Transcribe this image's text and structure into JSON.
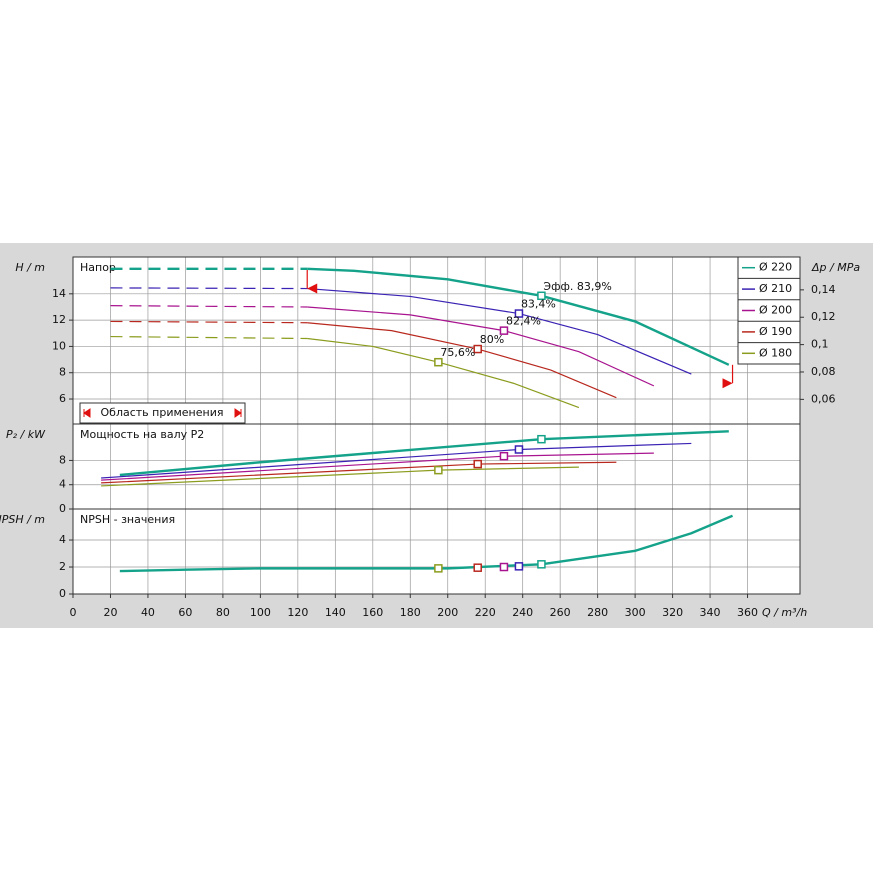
{
  "chart_data": [
    {
      "type": "line",
      "title": "Напор",
      "ylabel": "H / m",
      "y2label": "Δp / MPa",
      "xlim": [
        0,
        388
      ],
      "ylim": [
        4.1,
        16.8
      ],
      "yticks": [
        6,
        8,
        10,
        12,
        14
      ],
      "y2lim": [
        0.042,
        0.164
      ],
      "y2ticks": [
        {
          "value": 0.06,
          "label": "0,06"
        },
        {
          "value": 0.08,
          "label": "0,08"
        },
        {
          "value": 0.1,
          "label": "0,1"
        },
        {
          "value": 0.12,
          "label": "0,12"
        },
        {
          "value": 0.14,
          "label": "0,14"
        }
      ],
      "grid": true,
      "legend": "upper right",
      "application_range": [
        125,
        352
      ],
      "application_label": "Область применения",
      "series": [
        {
          "name": "Ø 220",
          "color": "#14a38a",
          "x": [
            20,
            125,
            150,
            200,
            250,
            300,
            350
          ],
          "values": [
            15.9,
            15.9,
            15.75,
            15.1,
            13.85,
            11.9,
            8.6
          ],
          "point": {
            "x": 250,
            "y": 13.85,
            "label": "Эфф.  83,9%"
          }
        },
        {
          "name": "Ø 210",
          "color": "#3a22b4",
          "x": [
            20,
            125,
            180,
            238,
            280,
            330
          ],
          "values": [
            14.45,
            14.4,
            13.8,
            12.5,
            10.9,
            7.9
          ],
          "point": {
            "x": 238,
            "y": 12.5,
            "label": "83,4%"
          }
        },
        {
          "name": "Ø 200",
          "color": "#a8148f",
          "x": [
            20,
            125,
            180,
            230,
            270,
            310
          ],
          "values": [
            13.1,
            13.0,
            12.4,
            11.2,
            9.6,
            7.0
          ],
          "point": {
            "x": 230,
            "y": 11.2,
            "label": "82,4%"
          }
        },
        {
          "name": "Ø 190",
          "color": "#b8281e",
          "x": [
            20,
            125,
            170,
            216,
            255,
            290
          ],
          "values": [
            11.9,
            11.8,
            11.2,
            9.8,
            8.2,
            6.1
          ],
          "point": {
            "x": 216,
            "y": 9.8,
            "label": "80%"
          }
        },
        {
          "name": "Ø 180",
          "color": "#8c9c1e",
          "x": [
            20,
            125,
            160,
            195,
            235,
            270
          ],
          "values": [
            10.75,
            10.6,
            10.0,
            8.8,
            7.2,
            5.35
          ],
          "point": {
            "x": 195,
            "y": 8.8,
            "label": "75,6%"
          }
        }
      ]
    },
    {
      "type": "line",
      "title": "Мощность на валу P2",
      "ylabel": "P₂ / kW",
      "xlim": [
        0,
        388
      ],
      "ylim": [
        0,
        14
      ],
      "yticks": [
        0,
        4,
        8
      ],
      "grid": true,
      "series": [
        {
          "color": "#14a38a",
          "x": [
            25,
            100,
            250,
            350
          ],
          "values": [
            5.6,
            7.7,
            11.5,
            12.8
          ],
          "point": {
            "x": 250,
            "y": 11.5
          }
        },
        {
          "color": "#3a22b4",
          "x": [
            15,
            238,
            330
          ],
          "values": [
            5.1,
            9.8,
            10.8
          ],
          "point": {
            "x": 238,
            "y": 9.8
          }
        },
        {
          "color": "#a8148f",
          "x": [
            15,
            230,
            310
          ],
          "values": [
            4.75,
            8.7,
            9.2
          ],
          "point": {
            "x": 230,
            "y": 8.7
          }
        },
        {
          "color": "#b8281e",
          "x": [
            15,
            216,
            290
          ],
          "values": [
            4.3,
            7.4,
            7.7
          ],
          "point": {
            "x": 216,
            "y": 7.4
          }
        },
        {
          "color": "#8c9c1e",
          "x": [
            15,
            195,
            270
          ],
          "values": [
            3.8,
            6.4,
            6.9
          ],
          "point": {
            "x": 195,
            "y": 6.4
          }
        }
      ]
    },
    {
      "type": "line",
      "title": "NPSH - значения",
      "ylabel": "NPSH / m",
      "xlabel": "Q / m³/h",
      "xlim": [
        0,
        388
      ],
      "ylim": [
        0,
        6.3
      ],
      "yticks": [
        0,
        2,
        4
      ],
      "xticks": [
        0,
        20,
        40,
        60,
        80,
        100,
        120,
        140,
        160,
        180,
        200,
        220,
        240,
        260,
        280,
        300,
        320,
        340,
        360
      ],
      "grid": true,
      "series": [
        {
          "color": "#14a38a",
          "x": [
            25,
            60,
            100,
            200,
            250,
            300,
            330,
            352
          ],
          "values": [
            1.7,
            1.8,
            1.9,
            1.9,
            2.2,
            3.2,
            4.5,
            5.8
          ],
          "points": [
            {
              "x": 195,
              "y": 1.9,
              "color": "#8c9c1e"
            },
            {
              "x": 216,
              "y": 1.95,
              "color": "#b8281e"
            },
            {
              "x": 230,
              "y": 2.0,
              "color": "#a8148f"
            },
            {
              "x": 238,
              "y": 2.05,
              "color": "#3a22b4"
            },
            {
              "x": 250,
              "y": 2.2,
              "color": "#14a38a"
            }
          ]
        }
      ]
    }
  ]
}
